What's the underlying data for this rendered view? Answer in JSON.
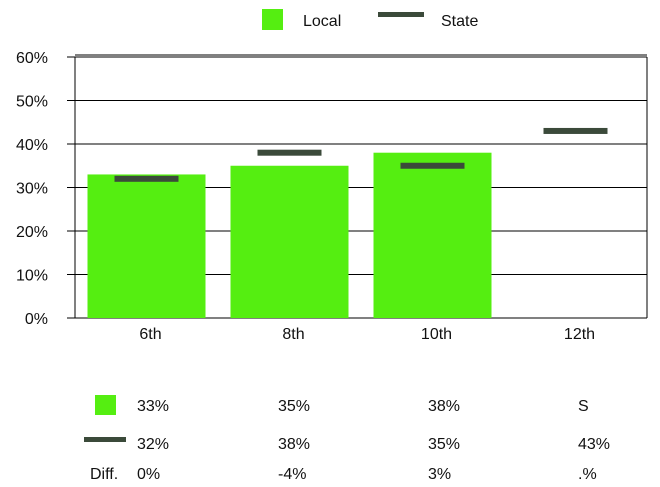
{
  "colors": {
    "local": "#55ee11",
    "state": "#3b4a3a",
    "grid": "#000000"
  },
  "legend": {
    "local_label": "Local",
    "state_label": "State"
  },
  "chart_data": {
    "type": "bar",
    "categories": [
      "6th",
      "8th",
      "10th",
      "12th"
    ],
    "series": [
      {
        "name": "Local",
        "kind": "bar",
        "values": [
          33,
          35,
          38,
          null
        ]
      },
      {
        "name": "State",
        "kind": "marker",
        "values": [
          32,
          38,
          35,
          43
        ]
      }
    ],
    "ylim": [
      0,
      60
    ],
    "yticks": [
      "0%",
      "10%",
      "20%",
      "30%",
      "40%",
      "50%",
      "60%"
    ],
    "grid": true,
    "legend_position": "top"
  },
  "table": {
    "local_row": [
      "33%",
      "35%",
      "38%",
      "S"
    ],
    "state_row": [
      "32%",
      "38%",
      "35%",
      "43%"
    ],
    "diff_label": "Diff.",
    "diff_row": [
      "0%",
      "-4%",
      "3%",
      ".%"
    ]
  }
}
